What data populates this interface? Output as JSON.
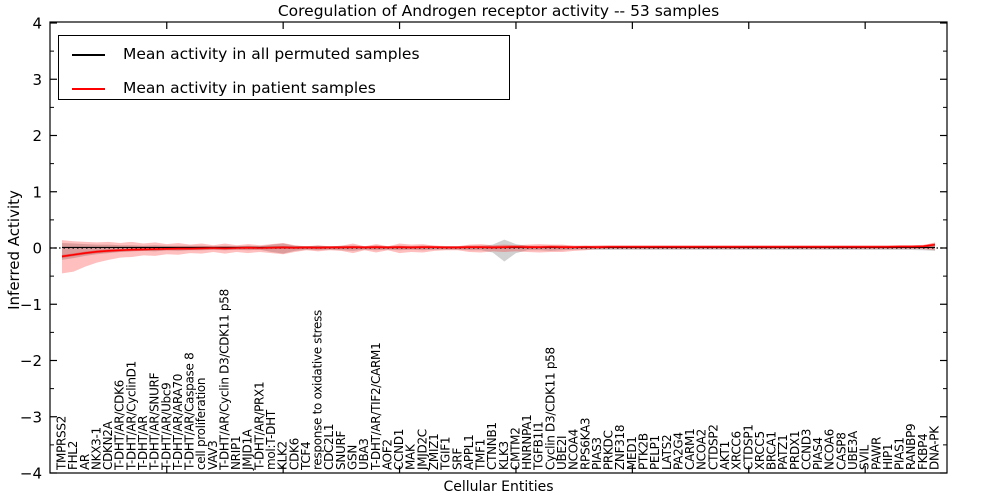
{
  "chart_data": {
    "type": "line",
    "title": "Coregulation of Androgen receptor activity -- 53 samples",
    "xlabel": "Cellular Entities",
    "ylabel": "Inferred Activity",
    "ylim": [
      -4,
      4
    ],
    "grid": false,
    "legend_position": "upper left",
    "zero_line": {
      "value": 0,
      "style": "dotted",
      "color": "#000000"
    },
    "categories": [
      "TMPRSS2",
      "FHL2",
      "AR",
      "NKX3-1",
      "CDKN2A",
      "T-DHT/AR/CDK6",
      "T-DHT/AR/CyclinD1",
      "T-DHT/AR",
      "T-DHT/AR/SNURF",
      "T-DHT/AR/Ubc9",
      "T-DHT/AR/ARA70",
      "T-DHT/AR/Caspase 8",
      "cell proliferation",
      "VAV3",
      "T-DHT/AR/Cyclin D3/CDK11 p58",
      "NRIP1",
      "JMJD1A",
      "T-DHT/AR/PRX1",
      "mol:T-DHT",
      "KLK2",
      "CDK6",
      "TCF4",
      "response to oxidative stress",
      "CDC2L1",
      "SNURF",
      "GSN",
      "UBA3",
      "T-DHT/AR/TIF2/CARM1",
      "AOF2",
      "CCND1",
      "MAK",
      "JMJD2C",
      "ZMIZ1",
      "TGIF1",
      "SRF",
      "APPL1",
      "TMF1",
      "CTNNB1",
      "KLK3",
      "CMTM2",
      "HNRNPA1",
      "TGFB1I1",
      "Cyclin D3/CDK11 p58",
      "UBE2I",
      "NCOA4",
      "RPS6KA3",
      "PIAS3",
      "PRKDC",
      "ZNF318",
      "MED1",
      "PTK2B",
      "PELP1",
      "LATS2",
      "PA2G4",
      "CARM1",
      "NCOA2",
      "CTDSP2",
      "AKT1",
      "XRCC6",
      "CTDSP1",
      "XRCC5",
      "BRCA1",
      "PATZ1",
      "PRDX1",
      "CCND3",
      "PIAS4",
      "NCOA6",
      "CASP8",
      "UBE3A",
      "SVIL",
      "PAWR",
      "HIP1",
      "PIAS1",
      "RANBP9",
      "FKBP4",
      "DNA-PK"
    ],
    "series": [
      {
        "name": "Mean activity in all permuted samples",
        "color": "#000000",
        "values": [
          0.01,
          0.01,
          0.01,
          0.01,
          0.01,
          0.01,
          0.01,
          0.01,
          0.01,
          0.01,
          0.01,
          0.01,
          0.01,
          0.01,
          0.01,
          0.01,
          0.01,
          0.01,
          0.01,
          0.01,
          0.01,
          0.01,
          0.01,
          0.01,
          0.01,
          0.01,
          0.01,
          0.01,
          0.01,
          0.01,
          0.01,
          0.01,
          0.01,
          0.01,
          0.01,
          0.01,
          0.01,
          0.01,
          0.01,
          0.01,
          0.01,
          0.01,
          0.01,
          0.01,
          0.01,
          0.01,
          0.01,
          0.01,
          0.01,
          0.01,
          0.01,
          0.01,
          0.01,
          0.01,
          0.01,
          0.01,
          0.01,
          0.01,
          0.01,
          0.01,
          0.01,
          0.01,
          0.01,
          0.01,
          0.01,
          0.01,
          0.01,
          0.01,
          0.01,
          0.01,
          0.01,
          0.01,
          0.01,
          0.01,
          0.01,
          0.01
        ]
      },
      {
        "name": "Mean activity in patient samples",
        "color": "#ff0000",
        "values": [
          -0.15,
          -0.12,
          -0.09,
          -0.065,
          -0.05,
          -0.04,
          -0.03,
          -0.025,
          -0.02,
          -0.015,
          -0.01,
          -0.01,
          -0.005,
          0,
          -0.005,
          0,
          0.005,
          0,
          0.005,
          0.01,
          0.005,
          0.01,
          0.005,
          0.01,
          0.01,
          0.015,
          0.01,
          0.015,
          0.01,
          0.015,
          0.01,
          0.015,
          0.015,
          0.01,
          0.01,
          0.015,
          0.015,
          0.01,
          0.015,
          0.02,
          0.015,
          0.015,
          0.02,
          0.015,
          0.015,
          0.02,
          0.015,
          0.02,
          0.02,
          0.02,
          0.02,
          0.02,
          0.02,
          0.02,
          0.02,
          0.02,
          0.02,
          0.02,
          0.02,
          0.02,
          0.02,
          0.02,
          0.02,
          0.02,
          0.02,
          0.02,
          0.02,
          0.02,
          0.02,
          0.02,
          0.02,
          0.02,
          0.025,
          0.025,
          0.03,
          0.06
        ]
      }
    ],
    "bands": [
      {
        "name": "permuted-samples-std-band",
        "color": "#8c8c8c",
        "opacity": 0.4,
        "upper": [
          0.09,
          0.08,
          0.07,
          0.06,
          0.06,
          0.05,
          0.05,
          0.04,
          0.05,
          0.04,
          0.04,
          0.04,
          0.04,
          0.03,
          0.04,
          0.03,
          0.04,
          0.03,
          0.06,
          0.08,
          0.04,
          0.03,
          0.04,
          0.03,
          0.04,
          0.04,
          0.03,
          0.04,
          0.03,
          0.04,
          0.03,
          0.04,
          0.03,
          0.03,
          0.03,
          0.04,
          0.04,
          0.06,
          0.15,
          0.07,
          0.04,
          0.03,
          0.04,
          0.04,
          0.03,
          0.03,
          0.035,
          0.035,
          0.035,
          0.035,
          0.035,
          0.035,
          0.035,
          0.035,
          0.035,
          0.035,
          0.035,
          0.035,
          0.035,
          0.035,
          0.035,
          0.035,
          0.035,
          0.035,
          0.035,
          0.035,
          0.035,
          0.035,
          0.035,
          0.035,
          0.035,
          0.035,
          0.035,
          0.035,
          0.04,
          0.06
        ],
        "lower": [
          -0.21,
          -0.18,
          -0.14,
          -0.11,
          -0.09,
          -0.07,
          -0.06,
          -0.05,
          -0.06,
          -0.04,
          -0.05,
          -0.04,
          -0.04,
          -0.03,
          -0.04,
          -0.03,
          -0.04,
          -0.03,
          -0.07,
          -0.1,
          -0.05,
          -0.03,
          -0.04,
          -0.03,
          -0.04,
          -0.05,
          -0.03,
          -0.04,
          -0.03,
          -0.04,
          -0.03,
          -0.04,
          -0.03,
          -0.03,
          -0.03,
          -0.04,
          -0.04,
          -0.08,
          -0.24,
          -0.09,
          -0.04,
          -0.04,
          -0.05,
          -0.04,
          -0.03,
          -0.03,
          -0.035,
          -0.035,
          -0.035,
          -0.035,
          -0.035,
          -0.035,
          -0.035,
          -0.035,
          -0.035,
          -0.035,
          -0.035,
          -0.035,
          -0.035,
          -0.035,
          -0.035,
          -0.035,
          -0.035,
          -0.035,
          -0.035,
          -0.035,
          -0.035,
          -0.035,
          -0.035,
          -0.035,
          -0.035,
          -0.035,
          -0.035,
          -0.035,
          -0.04,
          -0.05
        ]
      },
      {
        "name": "patient-samples-std-band",
        "color": "#ff0000",
        "opacity": 0.25,
        "upper": [
          0.14,
          0.12,
          0.11,
          0.1,
          0.11,
          0.09,
          0.11,
          0.08,
          0.1,
          0.07,
          0.09,
          0.06,
          0.08,
          0.05,
          0.08,
          0.05,
          0.07,
          0.05,
          0.07,
          0.09,
          0.05,
          0.03,
          0.05,
          0.03,
          0.04,
          0.08,
          0.03,
          0.07,
          0.03,
          0.08,
          0.06,
          0.07,
          0.04,
          0.03,
          0.03,
          0.06,
          0.07,
          0.05,
          0.06,
          0.05,
          0.06,
          0.07,
          0.06,
          0.06,
          0.04,
          0.03,
          0.045,
          0.045,
          0.045,
          0.045,
          0.045,
          0.045,
          0.045,
          0.045,
          0.045,
          0.045,
          0.045,
          0.045,
          0.045,
          0.045,
          0.045,
          0.045,
          0.045,
          0.045,
          0.045,
          0.045,
          0.045,
          0.045,
          0.045,
          0.045,
          0.045,
          0.045,
          0.045,
          0.045,
          0.05,
          0.1
        ],
        "lower": [
          -0.45,
          -0.42,
          -0.33,
          -0.26,
          -0.21,
          -0.17,
          -0.16,
          -0.13,
          -0.14,
          -0.11,
          -0.12,
          -0.09,
          -0.1,
          -0.07,
          -0.1,
          -0.07,
          -0.09,
          -0.07,
          -0.09,
          -0.11,
          -0.07,
          -0.04,
          -0.06,
          -0.04,
          -0.05,
          -0.09,
          -0.04,
          -0.08,
          -0.04,
          -0.09,
          -0.07,
          -0.08,
          -0.05,
          -0.04,
          -0.04,
          -0.07,
          -0.08,
          -0.06,
          -0.07,
          -0.06,
          -0.07,
          -0.08,
          -0.07,
          -0.07,
          -0.05,
          -0.04,
          -0.015,
          -0.015,
          -0.015,
          -0.015,
          -0.015,
          -0.015,
          -0.015,
          -0.015,
          -0.015,
          -0.015,
          -0.015,
          -0.015,
          -0.015,
          -0.015,
          -0.015,
          -0.015,
          -0.015,
          -0.015,
          -0.015,
          -0.015,
          -0.015,
          -0.015,
          -0.015,
          -0.015,
          -0.015,
          -0.015,
          -0.015,
          -0.015,
          -0.02,
          -0.04
        ]
      }
    ]
  },
  "legend": {
    "items": [
      {
        "label": "Mean activity in all permuted samples",
        "color": "#000000"
      },
      {
        "label": "Mean activity in patient samples",
        "color": "#ff0000"
      }
    ]
  },
  "axes": {
    "yticks": [
      4,
      3,
      2,
      1,
      0,
      -1,
      -2,
      -3,
      -4
    ],
    "ytick_labels": [
      "4",
      "3",
      "2",
      "1",
      "0",
      "−1",
      "−2",
      "−3",
      "−4"
    ],
    "xtick_major_indices": [
      9,
      19,
      29,
      39,
      49,
      59,
      69
    ]
  }
}
